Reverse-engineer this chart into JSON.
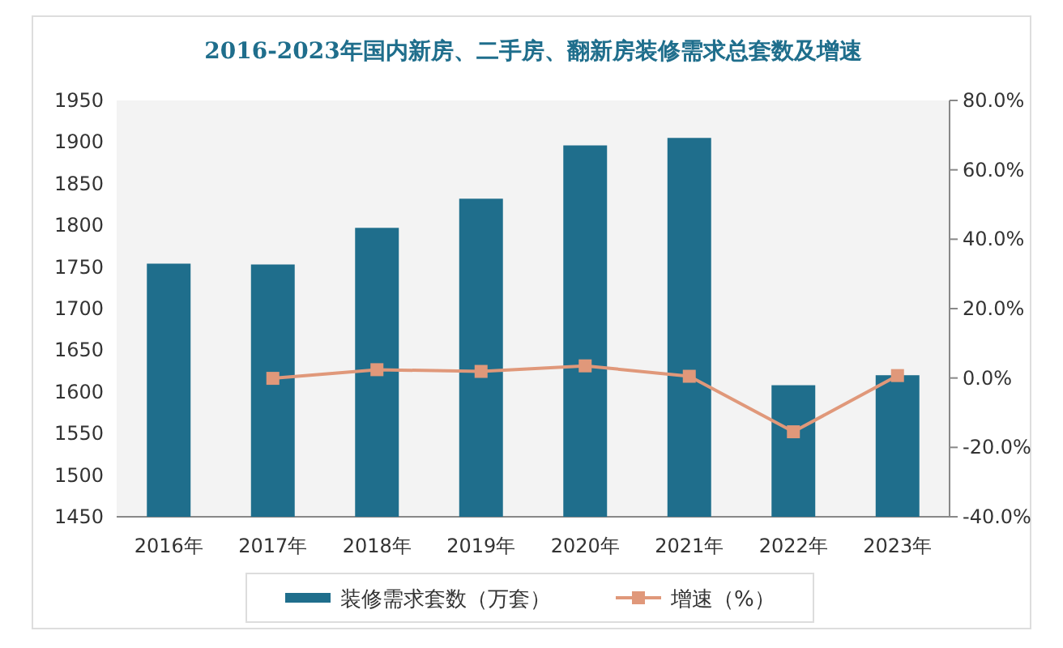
{
  "chart_data": {
    "type": "bar",
    "title": "2016-2023年国内新房、二手房、翻新房装修需求总套数及增速",
    "categories": [
      "2016年",
      "2017年",
      "2018年",
      "2019年",
      "2020年",
      "2021年",
      "2022年",
      "2023年"
    ],
    "series": [
      {
        "name": "装修需求套数（万套）",
        "color": "#1f6e8c",
        "values": [
          1754,
          1753,
          1797,
          1832,
          1896,
          1905,
          1608,
          1620
        ]
      },
      {
        "name": "增速（%）",
        "type": "line",
        "axis": "y2",
        "color": "#e0987a",
        "marker": "square",
        "values": [
          null,
          -0.1,
          2.4,
          1.9,
          3.5,
          0.5,
          -15.5,
          0.7
        ]
      }
    ],
    "ylim": [
      1450,
      1950
    ],
    "yticks": [
      1450,
      1500,
      1550,
      1600,
      1650,
      1700,
      1750,
      1800,
      1850,
      1900,
      1950
    ],
    "y2lim": [
      -40,
      80
    ],
    "y2ticks": [
      {
        "value": -40,
        "label": "-40.0%"
      },
      {
        "value": -20,
        "label": "-20.0%"
      },
      {
        "value": 0,
        "label": "0.0%"
      },
      {
        "value": 20,
        "label": "20.0%"
      },
      {
        "value": 40,
        "label": "40.0%"
      },
      {
        "value": 60,
        "label": "60.0%"
      },
      {
        "value": 80,
        "label": "80.0%"
      }
    ],
    "legend": "bottom",
    "grid": false
  }
}
